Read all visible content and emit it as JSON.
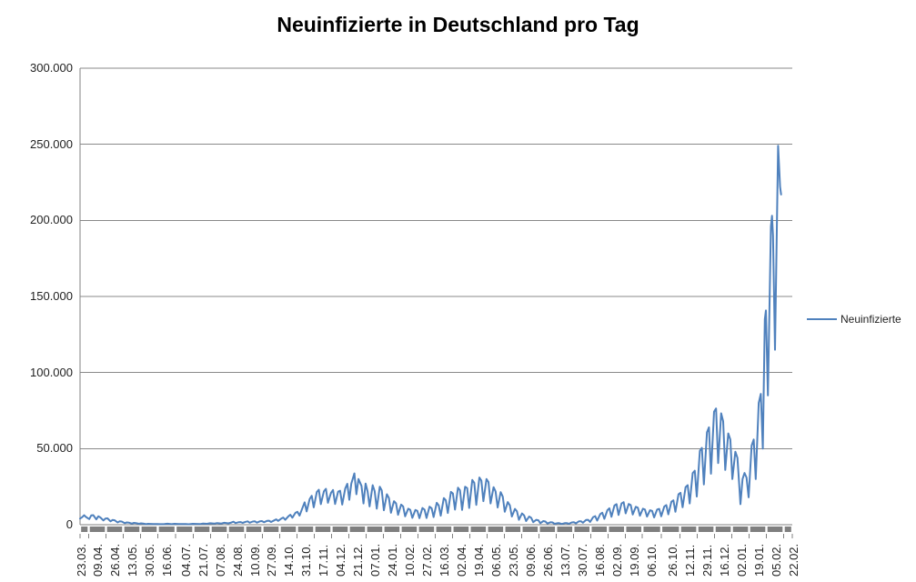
{
  "chart_data": {
    "type": "line",
    "title": "Neuinfizierte in Deutschland pro Tag",
    "xlabel": "",
    "ylabel": "",
    "ylim": [
      0,
      300000
    ],
    "y_tick_step": 50000,
    "y_ticks": [
      "300.000",
      "250.000",
      "200.000",
      "150.000",
      "100.000",
      "50.000",
      "0"
    ],
    "grid": true,
    "legend_position": "right",
    "x_total_days": 702,
    "x_tick_labels": [
      "23.03.",
      "09.04.",
      "26.04.",
      "13.05.",
      "30.05.",
      "16.06.",
      "04.07.",
      "21.07.",
      "07.08.",
      "24.08.",
      "10.09.",
      "27.09.",
      "14.10.",
      "31.10.",
      "17.11.",
      "04.12.",
      "21.12.",
      "07.01.",
      "24.01.",
      "10.02.",
      "27.02.",
      "16.03.",
      "02.04.",
      "19.04.",
      "06.05.",
      "23.05.",
      "09.06.",
      "26.06.",
      "13.07.",
      "30.07.",
      "16.08.",
      "02.09.",
      "19.09.",
      "06.10.",
      "26.10.",
      "12.11.",
      "29.11.",
      "16.12.",
      "02.01.",
      "19.01.",
      "05.02.",
      "22.02."
    ],
    "x_tick_days": [
      0,
      17,
      34,
      51,
      68,
      85,
      103,
      120,
      137,
      154,
      171,
      188,
      205,
      222,
      239,
      256,
      273,
      290,
      307,
      324,
      341,
      358,
      375,
      392,
      409,
      426,
      443,
      460,
      477,
      494,
      511,
      528,
      545,
      562,
      582,
      599,
      616,
      633,
      650,
      667,
      684,
      701
    ],
    "series": [
      {
        "name": "Neuinfizierte",
        "points": [
          [
            0,
            4000
          ],
          [
            2,
            4900
          ],
          [
            4,
            6200
          ],
          [
            6,
            5000
          ],
          [
            9,
            3700
          ],
          [
            11,
            6100
          ],
          [
            13,
            6300
          ],
          [
            16,
            3500
          ],
          [
            18,
            5500
          ],
          [
            20,
            4800
          ],
          [
            23,
            2800
          ],
          [
            25,
            4000
          ],
          [
            27,
            4200
          ],
          [
            30,
            2200
          ],
          [
            32,
            3100
          ],
          [
            34,
            2900
          ],
          [
            37,
            1500
          ],
          [
            39,
            2200
          ],
          [
            41,
            2100
          ],
          [
            44,
            1000
          ],
          [
            46,
            1500
          ],
          [
            48,
            1400
          ],
          [
            51,
            700
          ],
          [
            53,
            1200
          ],
          [
            55,
            1100
          ],
          [
            58,
            600
          ],
          [
            60,
            900
          ],
          [
            62,
            800
          ],
          [
            65,
            350
          ],
          [
            67,
            600
          ],
          [
            72,
            500
          ],
          [
            76,
            400
          ],
          [
            79,
            350
          ],
          [
            83,
            500
          ],
          [
            86,
            630
          ],
          [
            90,
            350
          ],
          [
            93,
            580
          ],
          [
            97,
            400
          ],
          [
            100,
            500
          ],
          [
            104,
            450
          ],
          [
            107,
            300
          ],
          [
            111,
            600
          ],
          [
            114,
            550
          ],
          [
            118,
            400
          ],
          [
            121,
            800
          ],
          [
            125,
            600
          ],
          [
            128,
            950
          ],
          [
            132,
            700
          ],
          [
            135,
            1050
          ],
          [
            139,
            800
          ],
          [
            142,
            1250
          ],
          [
            146,
            900
          ],
          [
            149,
            1450
          ],
          [
            151,
            2000
          ],
          [
            153,
            1100
          ],
          [
            156,
            1600
          ],
          [
            158,
            1750
          ],
          [
            160,
            1200
          ],
          [
            163,
            1900
          ],
          [
            165,
            2200
          ],
          [
            167,
            1300
          ],
          [
            170,
            2100
          ],
          [
            172,
            2300
          ],
          [
            174,
            1400
          ],
          [
            177,
            2200
          ],
          [
            179,
            2400
          ],
          [
            181,
            1600
          ],
          [
            184,
            2500
          ],
          [
            186,
            2600
          ],
          [
            188,
            1800
          ],
          [
            191,
            2800
          ],
          [
            193,
            3500
          ],
          [
            195,
            2500
          ],
          [
            198,
            4000
          ],
          [
            200,
            4700
          ],
          [
            202,
            3200
          ],
          [
            205,
            5500
          ],
          [
            207,
            6600
          ],
          [
            209,
            4600
          ],
          [
            212,
            7800
          ],
          [
            214,
            8500
          ],
          [
            216,
            6000
          ],
          [
            219,
            11200
          ],
          [
            221,
            14700
          ],
          [
            223,
            8700
          ],
          [
            226,
            16800
          ],
          [
            228,
            19000
          ],
          [
            230,
            11400
          ],
          [
            233,
            21500
          ],
          [
            235,
            23000
          ],
          [
            237,
            13500
          ],
          [
            240,
            22000
          ],
          [
            242,
            23600
          ],
          [
            244,
            14400
          ],
          [
            247,
            21000
          ],
          [
            249,
            22800
          ],
          [
            251,
            13600
          ],
          [
            254,
            21700
          ],
          [
            256,
            22300
          ],
          [
            258,
            13200
          ],
          [
            261,
            23700
          ],
          [
            263,
            26900
          ],
          [
            265,
            16400
          ],
          [
            267,
            27000
          ],
          [
            270,
            33700
          ],
          [
            272,
            20000
          ],
          [
            274,
            30000
          ],
          [
            277,
            25500
          ],
          [
            279,
            14000
          ],
          [
            281,
            27000
          ],
          [
            283,
            22000
          ],
          [
            285,
            12000
          ],
          [
            288,
            26000
          ],
          [
            290,
            22000
          ],
          [
            292,
            10500
          ],
          [
            295,
            25000
          ],
          [
            297,
            22500
          ],
          [
            299,
            9500
          ],
          [
            302,
            20000
          ],
          [
            304,
            17500
          ],
          [
            306,
            7800
          ],
          [
            309,
            15500
          ],
          [
            311,
            14000
          ],
          [
            313,
            6500
          ],
          [
            316,
            13200
          ],
          [
            318,
            12000
          ],
          [
            320,
            5500
          ],
          [
            323,
            10500
          ],
          [
            325,
            9800
          ],
          [
            327,
            4500
          ],
          [
            330,
            9700
          ],
          [
            332,
            9100
          ],
          [
            334,
            4300
          ],
          [
            337,
            11000
          ],
          [
            339,
            9900
          ],
          [
            341,
            4400
          ],
          [
            344,
            11900
          ],
          [
            346,
            10800
          ],
          [
            348,
            5000
          ],
          [
            351,
            14400
          ],
          [
            353,
            12700
          ],
          [
            355,
            5900
          ],
          [
            358,
            17500
          ],
          [
            360,
            16000
          ],
          [
            362,
            7700
          ],
          [
            365,
            21600
          ],
          [
            367,
            20500
          ],
          [
            369,
            9900
          ],
          [
            372,
            24300
          ],
          [
            374,
            22600
          ],
          [
            376,
            9700
          ],
          [
            379,
            25000
          ],
          [
            381,
            24000
          ],
          [
            383,
            11000
          ],
          [
            386,
            29400
          ],
          [
            388,
            27500
          ],
          [
            390,
            13000
          ],
          [
            393,
            31000
          ],
          [
            395,
            29000
          ],
          [
            397,
            15500
          ],
          [
            400,
            30000
          ],
          [
            402,
            28000
          ],
          [
            404,
            14000
          ],
          [
            407,
            24700
          ],
          [
            409,
            21900
          ],
          [
            411,
            11300
          ],
          [
            414,
            21400
          ],
          [
            416,
            18500
          ],
          [
            418,
            8500
          ],
          [
            421,
            14900
          ],
          [
            423,
            12700
          ],
          [
            425,
            5400
          ],
          [
            428,
            10400
          ],
          [
            430,
            8800
          ],
          [
            432,
            3200
          ],
          [
            435,
            7400
          ],
          [
            437,
            6200
          ],
          [
            439,
            2400
          ],
          [
            442,
            5400
          ],
          [
            444,
            4600
          ],
          [
            446,
            1700
          ],
          [
            449,
            3200
          ],
          [
            451,
            2900
          ],
          [
            453,
            1000
          ],
          [
            456,
            2400
          ],
          [
            458,
            2100
          ],
          [
            460,
            800
          ],
          [
            463,
            1600
          ],
          [
            465,
            1500
          ],
          [
            467,
            600
          ],
          [
            470,
            1000
          ],
          [
            472,
            950
          ],
          [
            474,
            500
          ],
          [
            477,
            1000
          ],
          [
            479,
            1100
          ],
          [
            481,
            600
          ],
          [
            484,
            1500
          ],
          [
            486,
            1600
          ],
          [
            488,
            900
          ],
          [
            491,
            2200
          ],
          [
            493,
            2300
          ],
          [
            495,
            1300
          ],
          [
            498,
            3100
          ],
          [
            500,
            3200
          ],
          [
            502,
            1800
          ],
          [
            505,
            5000
          ],
          [
            507,
            5600
          ],
          [
            509,
            2700
          ],
          [
            512,
            7000
          ],
          [
            514,
            7900
          ],
          [
            516,
            3800
          ],
          [
            519,
            9500
          ],
          [
            521,
            10800
          ],
          [
            523,
            5200
          ],
          [
            526,
            12600
          ],
          [
            528,
            13500
          ],
          [
            530,
            6400
          ],
          [
            533,
            14000
          ],
          [
            535,
            14800
          ],
          [
            537,
            7500
          ],
          [
            540,
            13600
          ],
          [
            542,
            12900
          ],
          [
            544,
            6700
          ],
          [
            547,
            11800
          ],
          [
            549,
            11200
          ],
          [
            551,
            5900
          ],
          [
            554,
            10500
          ],
          [
            556,
            10000
          ],
          [
            558,
            5300
          ],
          [
            561,
            9500
          ],
          [
            563,
            9100
          ],
          [
            565,
            4800
          ],
          [
            568,
            10000
          ],
          [
            570,
            10400
          ],
          [
            572,
            5500
          ],
          [
            575,
            12000
          ],
          [
            577,
            12900
          ],
          [
            579,
            6800
          ],
          [
            582,
            15100
          ],
          [
            584,
            16000
          ],
          [
            586,
            8500
          ],
          [
            589,
            20000
          ],
          [
            591,
            21000
          ],
          [
            593,
            11500
          ],
          [
            596,
            24700
          ],
          [
            598,
            26000
          ],
          [
            600,
            14000
          ],
          [
            603,
            33900
          ],
          [
            605,
            35500
          ],
          [
            607,
            18500
          ],
          [
            610,
            48600
          ],
          [
            612,
            50500
          ],
          [
            614,
            26500
          ],
          [
            617,
            60700
          ],
          [
            619,
            64000
          ],
          [
            621,
            33500
          ],
          [
            624,
            74300
          ],
          [
            626,
            76400
          ],
          [
            628,
            40500
          ],
          [
            631,
            73200
          ],
          [
            633,
            68000
          ],
          [
            635,
            36000
          ],
          [
            638,
            60000
          ],
          [
            640,
            56000
          ],
          [
            642,
            30000
          ],
          [
            645,
            48000
          ],
          [
            647,
            44000
          ],
          [
            649,
            24000
          ],
          [
            650,
            13500
          ],
          [
            652,
            30000
          ],
          [
            654,
            34000
          ],
          [
            656,
            31000
          ],
          [
            658,
            18000
          ],
          [
            661,
            52000
          ],
          [
            663,
            56000
          ],
          [
            665,
            30000
          ],
          [
            668,
            80000
          ],
          [
            670,
            86000
          ],
          [
            672,
            50000
          ],
          [
            674,
            135000
          ],
          [
            675,
            140800
          ],
          [
            677,
            85000
          ],
          [
            680,
            196000
          ],
          [
            681,
            203000
          ],
          [
            682,
            190000
          ],
          [
            684,
            115000
          ],
          [
            687,
            249000
          ],
          [
            689,
            222000
          ],
          [
            690,
            217000
          ]
        ]
      }
    ]
  },
  "colors": {
    "line": "#4F81BD",
    "gridline": "#898989",
    "axis": "#808080",
    "tick_band": "#7F7F7F",
    "text": "#1F1F1F",
    "title": "#000000",
    "background": "#FFFFFF"
  }
}
